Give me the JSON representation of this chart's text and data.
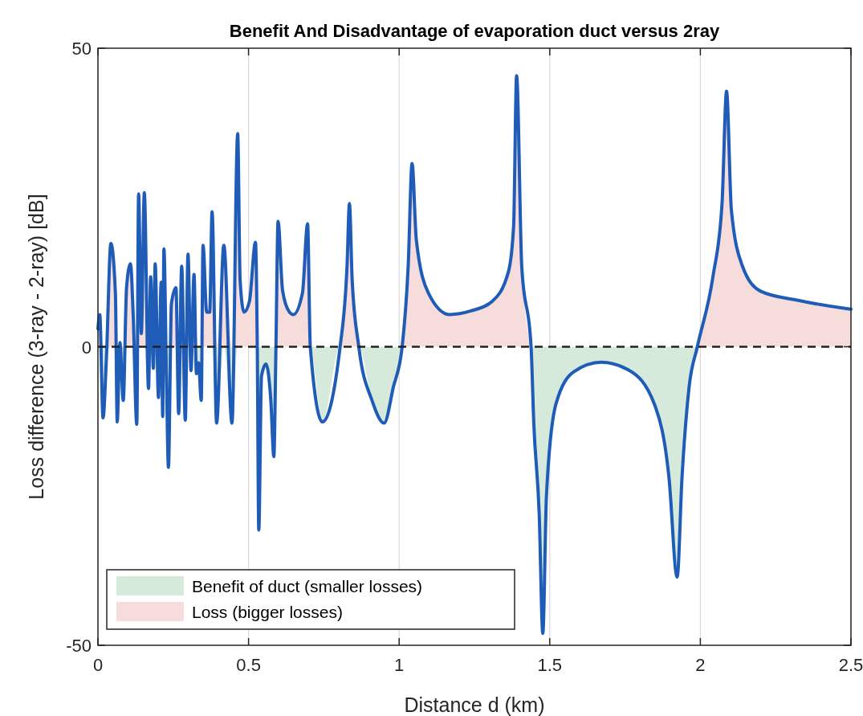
{
  "chart_data": {
    "type": "line",
    "title": "Benefit And Disadvantage of evaporation duct versus 2ray",
    "xlabel": "Distance d (km)",
    "ylabel": "Loss difference (3-ray - 2-ray) [dB]",
    "x": [
      0,
      0.006,
      0.017,
      0.028,
      0.043,
      0.058,
      0.064,
      0.073,
      0.084,
      0.095,
      0.108,
      0.117,
      0.129,
      0.135,
      0.144,
      0.154,
      0.168,
      0.175,
      0.184,
      0.19,
      0.201,
      0.21,
      0.215,
      0.219,
      0.228,
      0.234,
      0.244,
      0.259,
      0.268,
      0.278,
      0.29,
      0.299,
      0.309,
      0.319,
      0.327,
      0.334,
      0.343,
      0.349,
      0.361,
      0.371,
      0.379,
      0.394,
      0.418,
      0.445,
      0.464,
      0.472,
      0.485,
      0.503,
      0.523,
      0.529,
      0.534,
      0.543,
      0.558,
      0.574,
      0.584,
      0.591,
      0.598,
      0.613,
      0.636,
      0.649,
      0.679,
      0.696,
      0.705,
      0.745,
      0.804,
      0.827,
      0.835,
      0.844,
      0.866,
      0.91,
      0.95,
      0.981,
      1.01,
      1.03,
      1.043,
      1.057,
      1.097,
      1.167,
      1.238,
      1.309,
      1.363,
      1.38,
      1.39,
      1.407,
      1.438,
      1.447,
      1.465,
      1.477,
      1.489,
      1.52,
      1.58,
      1.671,
      1.762,
      1.848,
      1.896,
      1.923,
      1.939,
      1.963,
      1.99,
      2.042,
      2.072,
      2.087,
      2.103,
      2.139,
      2.2,
      2.321,
      2.485,
      2.5
    ],
    "series": [
      {
        "type": "area",
        "name": "Benefit of duct (smaller losses)",
        "color": "#d5eadb",
        "values": [
          0,
          0,
          -11.9,
          -2,
          0,
          0,
          -12.6,
          0,
          -9,
          0,
          0,
          0,
          -13,
          0,
          0,
          0,
          -7,
          0,
          -3.6,
          0,
          -8.5,
          0,
          -11.7,
          0,
          -6.7,
          -20.2,
          0,
          0,
          -11.2,
          0,
          -12.3,
          0,
          -4,
          0,
          -4.5,
          -2.7,
          -9,
          0,
          0,
          0,
          0,
          -12.8,
          0,
          -12.8,
          0,
          0,
          0,
          0,
          0,
          0,
          -30.7,
          -4.9,
          -2.9,
          -9,
          -18.4,
          0,
          0,
          0,
          0,
          0,
          0,
          0,
          0,
          -12.6,
          0,
          0,
          0,
          0,
          0,
          -9,
          -12.8,
          -6.7,
          0,
          null,
          null,
          null,
          null,
          null,
          null,
          null,
          null,
          null,
          null,
          null,
          0,
          -12.8,
          -28,
          -48,
          -25,
          -9.7,
          -4.2,
          -2.6,
          -3.9,
          -9.7,
          -22,
          -38.6,
          -22,
          -6.6,
          0,
          null,
          null,
          null,
          null,
          null,
          null,
          null,
          null,
          null
        ]
      },
      {
        "type": "area",
        "name": "Loss (bigger losses)",
        "color": "#f6dcda",
        "values": [
          3,
          5.4,
          0,
          0,
          17.3,
          9,
          0,
          0.7,
          0,
          9.9,
          13.9,
          5.4,
          0,
          25.6,
          2.2,
          25.8,
          0,
          11.7,
          0,
          13.9,
          0,
          10.8,
          0,
          16.4,
          0,
          0,
          7.2,
          9.9,
          0,
          13.5,
          0,
          15.5,
          0,
          12.1,
          0,
          0,
          0,
          17,
          5.8,
          5.8,
          22.6,
          0,
          17,
          0,
          35.7,
          11.2,
          5.8,
          7.6,
          17.5,
          0,
          0,
          0,
          0,
          0,
          0,
          0,
          21,
          9.4,
          5.8,
          5.4,
          9,
          20.6,
          0,
          0,
          0,
          13.5,
          24,
          11.2,
          0,
          0,
          0,
          0,
          0,
          13.5,
          30.7,
          17.9,
          9,
          5.4,
          6,
          7.6,
          12.6,
          20.2,
          45.4,
          13.5,
          0,
          null,
          null,
          null,
          null,
          null,
          null,
          null,
          null,
          null,
          null,
          null,
          null,
          null,
          0,
          11.8,
          24,
          42.8,
          22.9,
          13.6,
          9.3,
          7.8,
          6.4,
          6.3
        ]
      },
      {
        "color": "#1f5cb8",
        "values": [
          3,
          5.4,
          -11.9,
          -2,
          17.3,
          9,
          -12.6,
          0.7,
          -9,
          9.9,
          13.9,
          5.4,
          -13,
          25.6,
          2.2,
          25.8,
          -7,
          11.7,
          -3.6,
          13.9,
          -8.5,
          10.8,
          -11.7,
          16.4,
          -6.7,
          -20.2,
          7.2,
          9.9,
          -11.2,
          13.5,
          -12.3,
          15.5,
          -4,
          12.1,
          -4.5,
          -2.7,
          -9,
          17,
          5.8,
          5.8,
          22.6,
          -12.8,
          17,
          -12.8,
          35.7,
          11.2,
          5.8,
          7.6,
          17.5,
          0,
          -30.7,
          -4.9,
          -2.9,
          -9,
          -18.4,
          0,
          21,
          9.4,
          5.8,
          5.4,
          9,
          20.6,
          0,
          -12.6,
          0,
          13.5,
          24,
          11.2,
          0,
          -9,
          -12.8,
          -6.7,
          0,
          13.5,
          30.7,
          17.9,
          9,
          5.4,
          6,
          7.6,
          12.6,
          20.2,
          45.4,
          13.5,
          0,
          -12.8,
          -28,
          -48,
          -25,
          -9.7,
          -4.2,
          -2.6,
          -3.9,
          -9.7,
          -22,
          -38.6,
          -22,
          -6.6,
          0,
          11.8,
          24,
          42.8,
          22.9,
          13.6,
          9.3,
          7.8,
          6.4,
          6.3
        ]
      }
    ],
    "xlim": [
      0,
      2.5
    ],
    "xticks": [
      0,
      0.5,
      1,
      1.5,
      2,
      2.5
    ],
    "ylim": [
      -50,
      50
    ],
    "yticks": [
      -50,
      0,
      50
    ],
    "ref_lines": [
      {
        "axis": "y",
        "value": 0,
        "color": "#222222",
        "line_style": "dashed"
      }
    ],
    "grid": "x",
    "legend": "bottom left",
    "line_style": "solid",
    "marker": "none"
  }
}
